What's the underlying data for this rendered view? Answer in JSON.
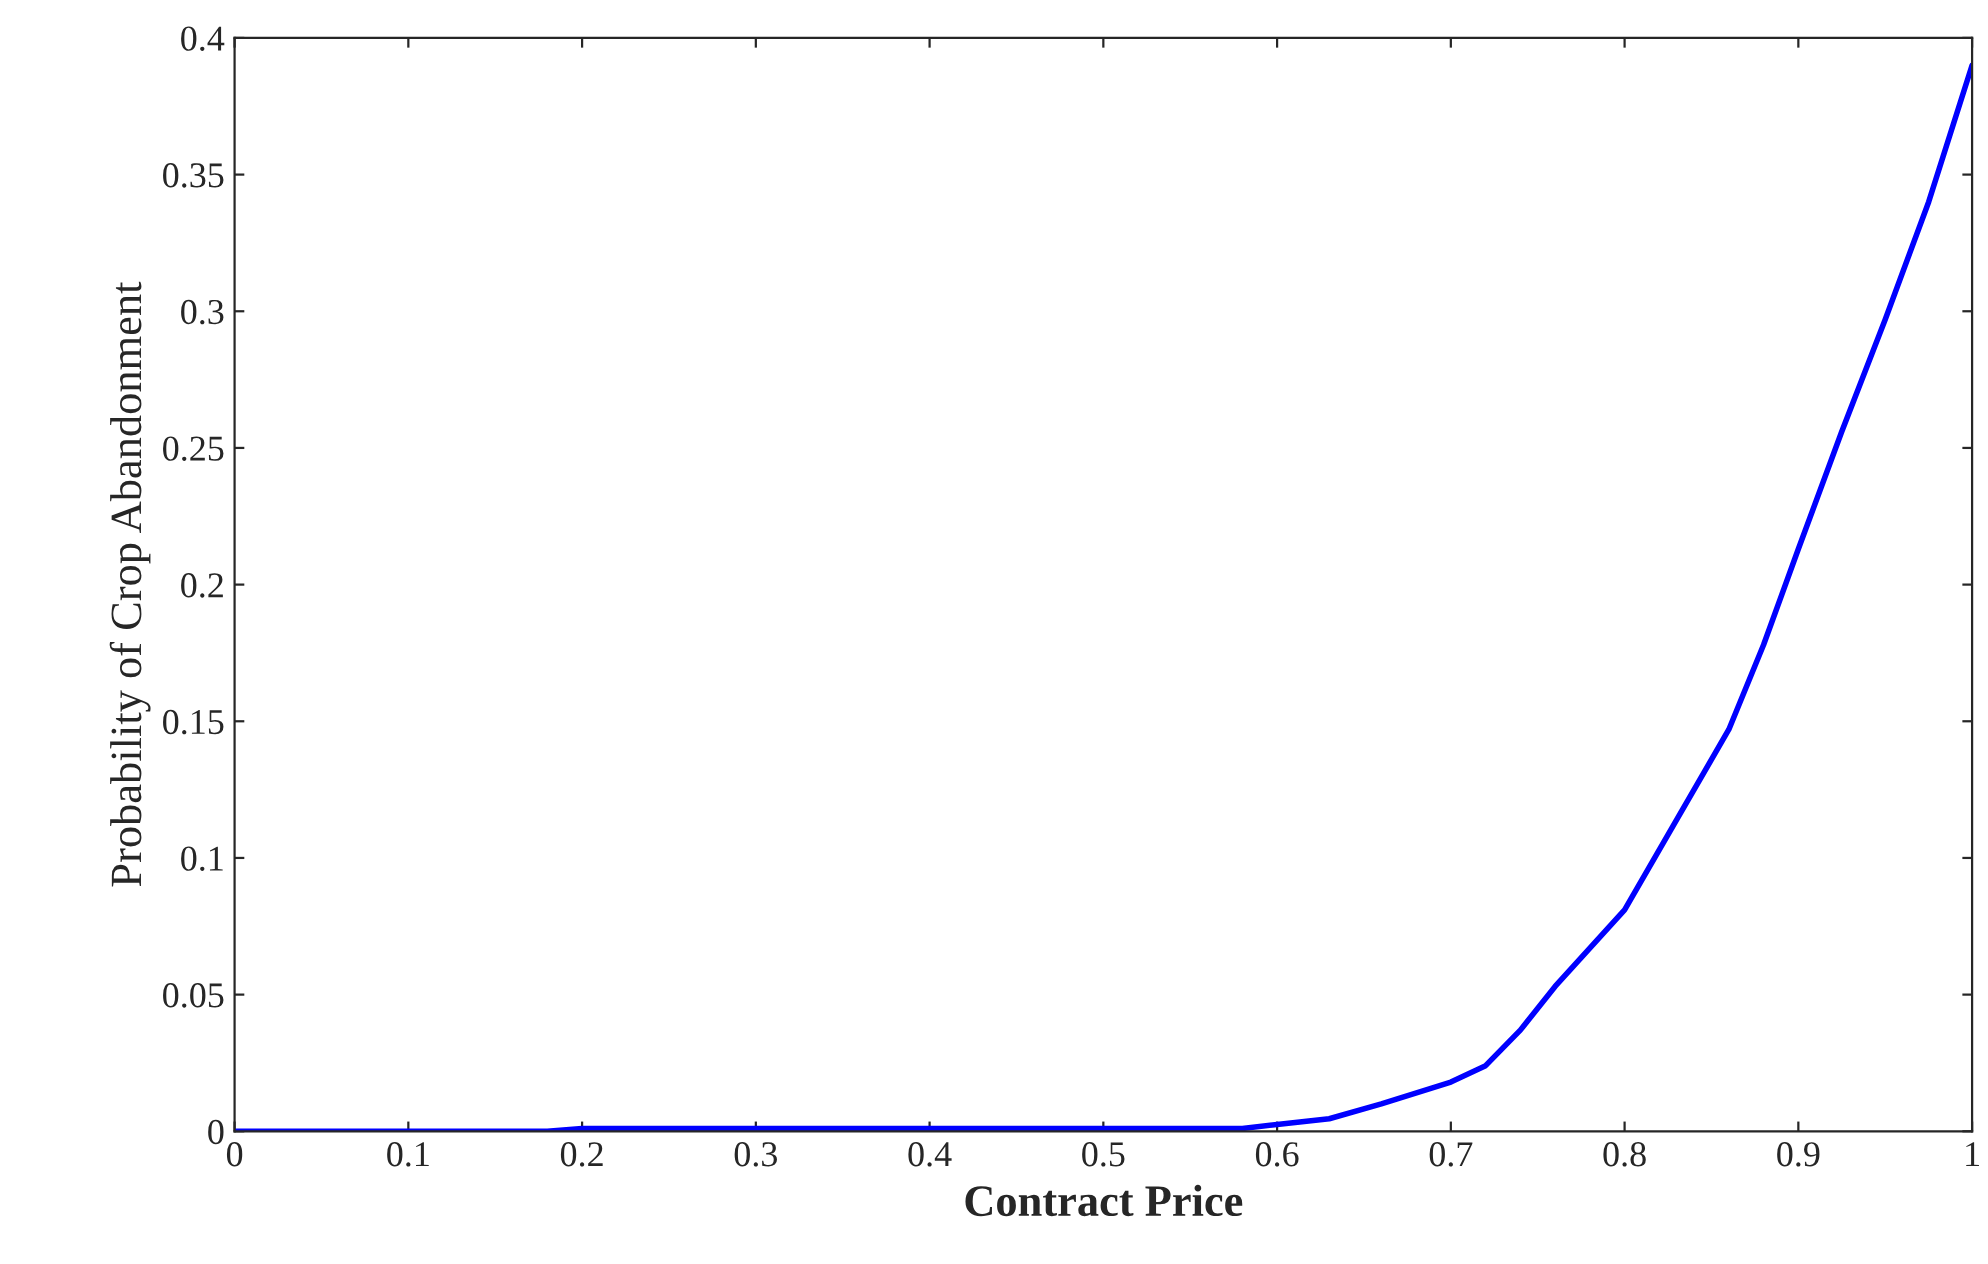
{
  "chart_data": {
    "type": "line",
    "xlabel": "Contract Price",
    "ylabel": "Probability of Crop Abandonment",
    "xlim": [
      0,
      1
    ],
    "ylim": [
      0,
      0.4
    ],
    "xticks": [
      0,
      0.1,
      0.2,
      0.3,
      0.4,
      0.5,
      0.6,
      0.7,
      0.8,
      0.9,
      1
    ],
    "yticks": [
      0,
      0.05,
      0.1,
      0.15,
      0.2,
      0.25,
      0.3,
      0.35,
      0.4
    ],
    "grid": false,
    "series": [
      {
        "color": "#0000ff",
        "x": [
          0,
          0.1,
          0.18,
          0.2,
          0.3,
          0.4,
          0.5,
          0.58,
          0.6,
          0.63,
          0.66,
          0.7,
          0.72,
          0.74,
          0.76,
          0.8,
          0.83,
          0.86,
          0.88,
          0.9,
          0.925,
          0.95,
          0.975,
          1.0
        ],
        "values": [
          0,
          0,
          0,
          0.001,
          0.001,
          0.001,
          0.001,
          0.001,
          0.0025,
          0.0046,
          0.01,
          0.018,
          0.024,
          0.037,
          0.053,
          0.081,
          0.114,
          0.147,
          0.178,
          0.213,
          0.256,
          0.297,
          0.34,
          0.39
        ]
      }
    ]
  }
}
